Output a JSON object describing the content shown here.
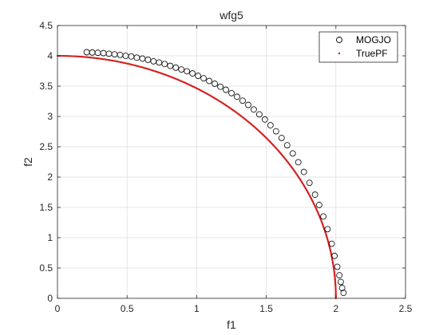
{
  "chart_data": {
    "type": "scatter",
    "title": "wfg5",
    "xlabel": "f1",
    "ylabel": "f2",
    "xlim": [
      0,
      2.5
    ],
    "ylim": [
      0,
      4.5
    ],
    "xticks": [
      "0",
      "0.5",
      "1",
      "1.5",
      "2",
      "2.5"
    ],
    "yticks": [
      "0",
      "0.5",
      "1",
      "1.5",
      "2",
      "2.5",
      "3",
      "3.5",
      "4",
      "4.5"
    ],
    "grid": true,
    "legend_position": "top-right",
    "series": [
      {
        "name": "MOGJO",
        "marker": "open-circle",
        "color": "#000000",
        "points": [
          [
            0.21,
            4.06
          ],
          [
            0.25,
            4.055
          ],
          [
            0.29,
            4.05
          ],
          [
            0.33,
            4.045
          ],
          [
            0.37,
            4.035
          ],
          [
            0.41,
            4.025
          ],
          [
            0.45,
            4.015
          ],
          [
            0.49,
            4.0
          ],
          [
            0.53,
            3.99
          ],
          [
            0.57,
            3.97
          ],
          [
            0.61,
            3.955
          ],
          [
            0.65,
            3.935
          ],
          [
            0.69,
            3.91
          ],
          [
            0.73,
            3.89
          ],
          [
            0.77,
            3.865
          ],
          [
            0.81,
            3.835
          ],
          [
            0.85,
            3.805
          ],
          [
            0.89,
            3.775
          ],
          [
            0.93,
            3.745
          ],
          [
            0.97,
            3.71
          ],
          [
            1.01,
            3.67
          ],
          [
            1.05,
            3.63
          ],
          [
            1.09,
            3.585
          ],
          [
            1.13,
            3.54
          ],
          [
            1.17,
            3.49
          ],
          [
            1.21,
            3.44
          ],
          [
            1.25,
            3.385
          ],
          [
            1.29,
            3.325
          ],
          [
            1.33,
            3.26
          ],
          [
            1.37,
            3.19
          ],
          [
            1.41,
            3.115
          ],
          [
            1.45,
            3.035
          ],
          [
            1.49,
            2.95
          ],
          [
            1.53,
            2.855
          ],
          [
            1.57,
            2.755
          ],
          [
            1.61,
            2.645
          ],
          [
            1.65,
            2.525
          ],
          [
            1.69,
            2.39
          ],
          [
            1.73,
            2.245
          ],
          [
            1.77,
            2.085
          ],
          [
            1.81,
            1.905
          ],
          [
            1.85,
            1.71
          ],
          [
            1.88,
            1.54
          ],
          [
            1.91,
            1.35
          ],
          [
            1.94,
            1.14
          ],
          [
            1.97,
            0.9
          ],
          [
            1.99,
            0.7
          ],
          [
            2.01,
            0.52
          ],
          [
            2.025,
            0.38
          ],
          [
            2.035,
            0.27
          ],
          [
            2.045,
            0.17
          ],
          [
            2.055,
            0.09
          ]
        ]
      },
      {
        "name": "TruePF",
        "marker": "point",
        "color": "#d62222",
        "shape": "quarter-ellipse",
        "a": 2.0,
        "b": 4.0
      }
    ]
  }
}
